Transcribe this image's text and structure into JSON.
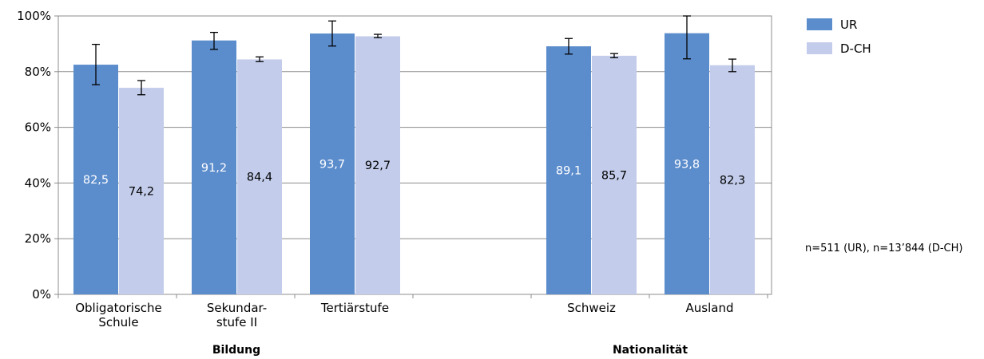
{
  "chart_data": {
    "type": "bar",
    "ylim": [
      0,
      100
    ],
    "ytick_labels": [
      "0%",
      "20%",
      "40%",
      "60%",
      "80%",
      "100%"
    ],
    "yticks": [
      0,
      20,
      40,
      60,
      80,
      100
    ],
    "grid": true,
    "legend_placement": "top-right",
    "categories": [
      {
        "label_lines": [
          "Obligatorische",
          "Schule"
        ]
      },
      {
        "label_lines": [
          "Sekundar-",
          "stufe II"
        ]
      },
      {
        "label_lines": [
          "Tertiärstufe"
        ]
      },
      {
        "label_lines": [
          "Schweiz"
        ]
      },
      {
        "label_lines": [
          "Ausland"
        ]
      }
    ],
    "groups": [
      {
        "label": "Bildung",
        "category_indices": [
          0,
          1,
          2
        ]
      },
      {
        "label": "Nationalität",
        "category_indices": [
          3,
          4
        ]
      }
    ],
    "series": [
      {
        "name": "UR",
        "color": "#5b8ccc",
        "label_color": "#ffffff",
        "values": [
          82.5,
          91.2,
          93.7,
          89.1,
          93.8
        ],
        "data_labels": [
          "82,5",
          "91,2",
          "93,7",
          "89,1",
          "93,8"
        ],
        "error_low": [
          75.3,
          88.0,
          89.2,
          86.3,
          84.6
        ],
        "error_high": [
          89.8,
          94.1,
          98.2,
          91.9,
          100.0
        ]
      },
      {
        "name": "D-CH",
        "color": "#c3cdeb",
        "label_color": "#000000",
        "values": [
          74.2,
          84.4,
          92.7,
          85.7,
          82.3
        ],
        "data_labels": [
          "74,2",
          "84,4",
          "92,7",
          "85,7",
          "82,3"
        ],
        "error_low": [
          71.7,
          83.6,
          92.2,
          85.0,
          80.0
        ],
        "error_high": [
          76.8,
          85.3,
          93.4,
          86.5,
          84.5
        ]
      }
    ],
    "note": "n=511 (UR), n=13’844 (D-CH)"
  }
}
